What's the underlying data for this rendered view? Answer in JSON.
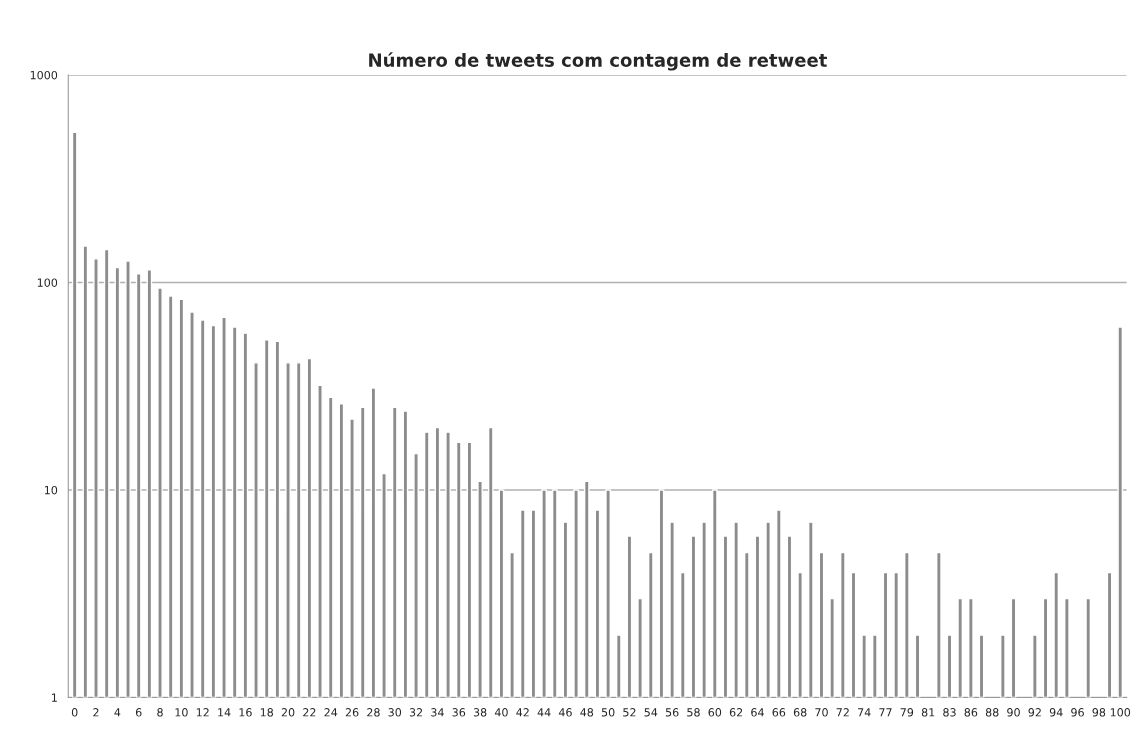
{
  "chart_data": {
    "type": "bar",
    "title": "Número de tweets com contagem de retweet",
    "categories": [
      "0",
      null,
      "2",
      null,
      "4",
      null,
      "6",
      null,
      "8",
      null,
      "10",
      null,
      "12",
      null,
      "14",
      null,
      "16",
      null,
      "18",
      null,
      "20",
      null,
      "22",
      null,
      "24",
      null,
      "26",
      null,
      "28",
      null,
      "30",
      null,
      "32",
      null,
      "34",
      null,
      "36",
      null,
      "38",
      null,
      "40",
      null,
      "42",
      null,
      "44",
      null,
      "46",
      null,
      "48",
      null,
      "50",
      null,
      "52",
      null,
      "54",
      null,
      "56",
      null,
      "58",
      null,
      "60",
      null,
      "62",
      null,
      "64",
      null,
      "66",
      null,
      "68",
      null,
      "70",
      null,
      "72",
      null,
      "74",
      null,
      "77",
      null,
      "79",
      null,
      "81",
      null,
      "83",
      null,
      "86",
      null,
      "88",
      null,
      "90",
      null,
      "92",
      null,
      "94",
      null,
      "96",
      null,
      "98",
      null,
      "100"
    ],
    "values": [
      530,
      150,
      130,
      144,
      118,
      127,
      110,
      115,
      94,
      86,
      83,
      72,
      66,
      62,
      68,
      61,
      57,
      41,
      53,
      52,
      41,
      41,
      43,
      32,
      28,
      26,
      22,
      25,
      31,
      12,
      25,
      24,
      15,
      19,
      20,
      19,
      17,
      17,
      11,
      20,
      10,
      5,
      8,
      8,
      10,
      10,
      7,
      10,
      11,
      8,
      10,
      2,
      6,
      3,
      5,
      10,
      7,
      4,
      6,
      7,
      10,
      6,
      7,
      5,
      6,
      7,
      8,
      6,
      4,
      7,
      5,
      3,
      5,
      4,
      2,
      2,
      4,
      4,
      5,
      2,
      null,
      5,
      2,
      3,
      3,
      2,
      null,
      2,
      3,
      null,
      2,
      3,
      4,
      3,
      null,
      3,
      null,
      4,
      61
    ],
    "color": "#8c8c8c",
    "log": true,
    "ylim": [
      1,
      1000
    ],
    "yticks": [
      1,
      10,
      100,
      1000
    ],
    "grid": "y"
  }
}
